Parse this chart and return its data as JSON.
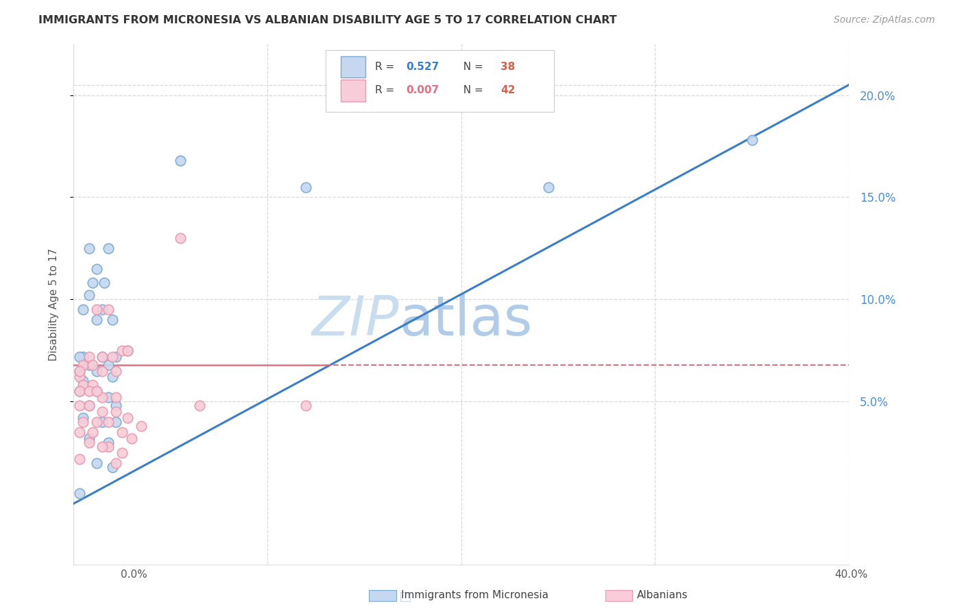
{
  "title": "IMMIGRANTS FROM MICRONESIA VS ALBANIAN DISABILITY AGE 5 TO 17 CORRELATION CHART",
  "source": "Source: ZipAtlas.com",
  "ylabel": "Disability Age 5 to 17",
  "xlim": [
    0.0,
    0.4
  ],
  "ylim": [
    -0.03,
    0.225
  ],
  "yticks": [
    0.05,
    0.1,
    0.15,
    0.2
  ],
  "ytick_labels": [
    "5.0%",
    "10.0%",
    "15.0%",
    "20.0%"
  ],
  "blue_line": {
    "x0": 0.0,
    "y0": 0.0,
    "x1": 0.4,
    "y1": 0.205
  },
  "pink_line_solid": {
    "x0": 0.0,
    "y0": 0.068,
    "x1": 0.13,
    "y1": 0.068
  },
  "pink_line_dashed": {
    "x0": 0.13,
    "y0": 0.068,
    "x1": 0.4,
    "y1": 0.068
  },
  "blue_scatter": [
    [
      0.008,
      0.125
    ],
    [
      0.018,
      0.125
    ],
    [
      0.012,
      0.115
    ],
    [
      0.01,
      0.108
    ],
    [
      0.016,
      0.108
    ],
    [
      0.008,
      0.102
    ],
    [
      0.005,
      0.095
    ],
    [
      0.015,
      0.095
    ],
    [
      0.012,
      0.09
    ],
    [
      0.02,
      0.09
    ],
    [
      0.005,
      0.072
    ],
    [
      0.015,
      0.072
    ],
    [
      0.022,
      0.072
    ],
    [
      0.008,
      0.068
    ],
    [
      0.018,
      0.068
    ],
    [
      0.003,
      0.065
    ],
    [
      0.012,
      0.065
    ],
    [
      0.02,
      0.062
    ],
    [
      0.003,
      0.072
    ],
    [
      0.005,
      0.06
    ],
    [
      0.003,
      0.055
    ],
    [
      0.012,
      0.055
    ],
    [
      0.018,
      0.052
    ],
    [
      0.008,
      0.048
    ],
    [
      0.022,
      0.048
    ],
    [
      0.005,
      0.042
    ],
    [
      0.015,
      0.04
    ],
    [
      0.022,
      0.04
    ],
    [
      0.008,
      0.032
    ],
    [
      0.018,
      0.03
    ],
    [
      0.012,
      0.02
    ],
    [
      0.02,
      0.018
    ],
    [
      0.003,
      0.005
    ],
    [
      0.055,
      0.168
    ],
    [
      0.245,
      0.155
    ],
    [
      0.35,
      0.178
    ],
    [
      0.12,
      0.155
    ],
    [
      0.028,
      0.075
    ]
  ],
  "pink_scatter": [
    [
      0.055,
      0.13
    ],
    [
      0.012,
      0.095
    ],
    [
      0.018,
      0.095
    ],
    [
      0.025,
      0.075
    ],
    [
      0.028,
      0.075
    ],
    [
      0.008,
      0.072
    ],
    [
      0.015,
      0.072
    ],
    [
      0.02,
      0.072
    ],
    [
      0.005,
      0.068
    ],
    [
      0.01,
      0.068
    ],
    [
      0.015,
      0.065
    ],
    [
      0.022,
      0.065
    ],
    [
      0.003,
      0.062
    ],
    [
      0.005,
      0.058
    ],
    [
      0.01,
      0.058
    ],
    [
      0.003,
      0.055
    ],
    [
      0.008,
      0.055
    ],
    [
      0.015,
      0.052
    ],
    [
      0.022,
      0.052
    ],
    [
      0.003,
      0.048
    ],
    [
      0.008,
      0.048
    ],
    [
      0.015,
      0.045
    ],
    [
      0.022,
      0.045
    ],
    [
      0.005,
      0.04
    ],
    [
      0.012,
      0.04
    ],
    [
      0.018,
      0.04
    ],
    [
      0.003,
      0.035
    ],
    [
      0.01,
      0.035
    ],
    [
      0.025,
      0.035
    ],
    [
      0.03,
      0.032
    ],
    [
      0.018,
      0.028
    ],
    [
      0.025,
      0.025
    ],
    [
      0.003,
      0.022
    ],
    [
      0.065,
      0.048
    ],
    [
      0.12,
      0.048
    ],
    [
      0.003,
      0.065
    ],
    [
      0.012,
      0.055
    ],
    [
      0.028,
      0.042
    ],
    [
      0.035,
      0.038
    ],
    [
      0.008,
      0.03
    ],
    [
      0.015,
      0.028
    ],
    [
      0.022,
      0.02
    ]
  ],
  "bg_color": "#ffffff",
  "scatter_blue_face": "#c5d8f0",
  "scatter_blue_edge": "#7aaad4",
  "scatter_pink_face": "#f8ccd8",
  "scatter_pink_edge": "#e899b0",
  "line_blue_color": "#3a7dc9",
  "line_pink_color": "#e07080",
  "grid_color": "#d8d8d8",
  "title_color": "#333333",
  "axis_label_color": "#555555",
  "right_tick_color": "#4a90d9",
  "watermark_zip_color": "#c8ddf0",
  "watermark_atlas_color": "#b0cce8",
  "legend_r_color": "#3a7dc9",
  "legend_n_color": "#d6604d",
  "legend_border_color": "#cccccc"
}
